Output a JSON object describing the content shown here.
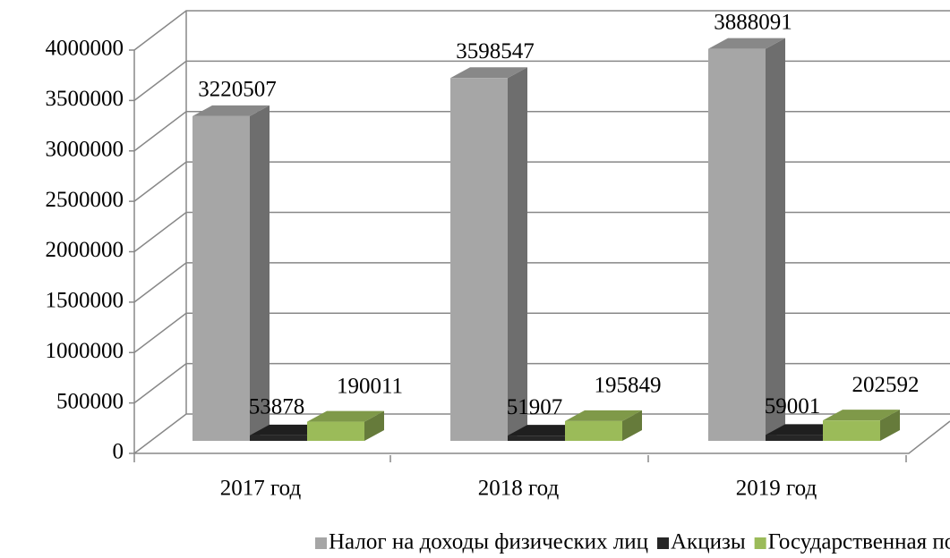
{
  "chart_data": {
    "type": "bar3d",
    "categories": [
      "2017 год",
      "2018 год",
      "2019 год"
    ],
    "series": [
      {
        "name": "Налог на доходы физических лиц",
        "color": "#a6a6a6",
        "values": [
          3220507,
          3598547,
          3888091
        ]
      },
      {
        "name": "Акцизы",
        "color": "#262626",
        "values": [
          53878,
          51907,
          59001
        ]
      },
      {
        "name": "Государственная пошлина",
        "color": "#9bbb59",
        "values": [
          190011,
          195849,
          202592
        ]
      }
    ],
    "ylim": [
      0,
      4000000
    ],
    "yticks": [
      0,
      500000,
      1000000,
      1500000,
      2000000,
      2500000,
      3000000,
      3500000,
      4000000
    ],
    "grid": true,
    "legend": "bottom"
  }
}
